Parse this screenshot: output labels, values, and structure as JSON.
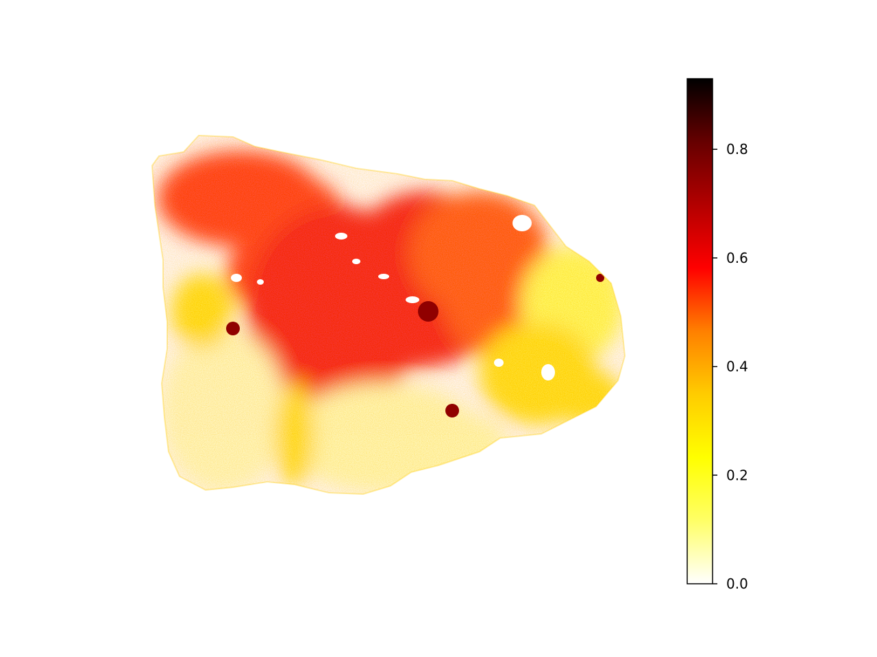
{
  "chart_data": {
    "type": "heatmap",
    "title": "",
    "xlabel": "",
    "ylabel": "",
    "axes_visible": false,
    "colormap": "hot_r",
    "colormap_stops": [
      "#ffffff",
      "#ffff66",
      "#ffff00",
      "#ffcc00",
      "#ff8000",
      "#ff0000",
      "#b30000",
      "#660000",
      "#000000"
    ],
    "colorbar": {
      "location": "right",
      "vmin": 0.0,
      "vmax": 0.93,
      "ticks": [
        0.0,
        0.2,
        0.4,
        0.6,
        0.8
      ],
      "tick_labels": [
        "0.0",
        "0.2",
        "0.4",
        "0.6",
        "0.8"
      ]
    },
    "regions": [
      {
        "name": "upper-left tissue band",
        "value": 0.55
      },
      {
        "name": "central stroma",
        "value": 0.6
      },
      {
        "name": "right upper lobe",
        "value": 0.52
      },
      {
        "name": "right edge nodule",
        "value": 0.15
      },
      {
        "name": "lower-left lobe",
        "value": 0.05
      },
      {
        "name": "lower-center lobe",
        "value": 0.06
      },
      {
        "name": "transition zone",
        "value": 0.3
      },
      {
        "name": "hotspots",
        "value": 0.75
      }
    ]
  }
}
